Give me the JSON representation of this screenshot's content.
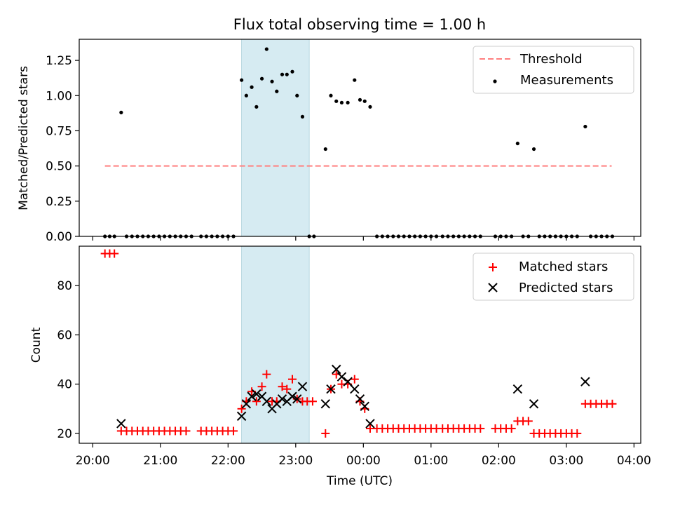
{
  "colors": {
    "threshold": "#ff7f7f",
    "measurements": "#000000",
    "matched": "#ff0000",
    "predicted": "#000000",
    "shade": "#add8e6"
  },
  "chart_data": [
    {
      "type": "scatter",
      "title": "Flux total observing time = 1.00 h",
      "xlabel": "",
      "ylabel": "Matched/Predicted stars",
      "x_units": "hours since 20:00 UTC",
      "xlim": [
        -0.2,
        8.1
      ],
      "ylim": [
        0,
        1.4
      ],
      "yticks": [
        0.0,
        0.25,
        0.5,
        0.75,
        1.0,
        1.25
      ],
      "ytick_labels": [
        "0.00",
        "0.25",
        "0.50",
        "0.75",
        "1.00",
        "1.25"
      ],
      "legend_position": "upper right",
      "legend": [
        "Threshold",
        "Measurements"
      ],
      "shaded_x": [
        2.2,
        3.2
      ],
      "threshold": {
        "name": "Threshold",
        "x": [
          0.18,
          7.67
        ],
        "y": 0.5,
        "style": "dashed"
      },
      "series": [
        {
          "name": "Measurements",
          "marker": "dot",
          "points": [
            [
              0.18,
              0
            ],
            [
              0.25,
              0
            ],
            [
              0.32,
              0
            ],
            [
              0.42,
              0.88
            ],
            [
              0.5,
              0
            ],
            [
              0.58,
              0
            ],
            [
              0.66,
              0
            ],
            [
              0.74,
              0
            ],
            [
              0.82,
              0
            ],
            [
              0.9,
              0
            ],
            [
              0.98,
              0
            ],
            [
              1.06,
              0
            ],
            [
              1.14,
              0
            ],
            [
              1.22,
              0
            ],
            [
              1.3,
              0
            ],
            [
              1.38,
              0
            ],
            [
              1.46,
              0
            ],
            [
              1.6,
              0
            ],
            [
              1.68,
              0
            ],
            [
              1.76,
              0
            ],
            [
              1.84,
              0
            ],
            [
              1.92,
              0
            ],
            [
              2.0,
              0
            ],
            [
              2.08,
              0
            ],
            [
              2.2,
              1.11
            ],
            [
              2.27,
              1.0
            ],
            [
              2.35,
              1.06
            ],
            [
              2.42,
              0.92
            ],
            [
              2.5,
              1.12
            ],
            [
              2.57,
              1.33
            ],
            [
              2.65,
              1.1
            ],
            [
              2.72,
              1.03
            ],
            [
              2.8,
              1.15
            ],
            [
              2.87,
              1.15
            ],
            [
              2.95,
              1.17
            ],
            [
              3.02,
              1.0
            ],
            [
              3.1,
              0.85
            ],
            [
              3.2,
              0
            ],
            [
              3.27,
              0
            ],
            [
              3.44,
              0.62
            ],
            [
              3.52,
              1.0
            ],
            [
              3.6,
              0.96
            ],
            [
              3.68,
              0.95
            ],
            [
              3.77,
              0.95
            ],
            [
              3.87,
              1.11
            ],
            [
              3.95,
              0.97
            ],
            [
              4.02,
              0.96
            ],
            [
              4.1,
              0.92
            ],
            [
              4.2,
              0
            ],
            [
              4.28,
              0
            ],
            [
              4.36,
              0
            ],
            [
              4.44,
              0
            ],
            [
              4.52,
              0
            ],
            [
              4.6,
              0
            ],
            [
              4.68,
              0
            ],
            [
              4.76,
              0
            ],
            [
              4.84,
              0
            ],
            [
              4.92,
              0
            ],
            [
              5.0,
              0
            ],
            [
              5.08,
              0
            ],
            [
              5.17,
              0
            ],
            [
              5.25,
              0
            ],
            [
              5.33,
              0
            ],
            [
              5.41,
              0
            ],
            [
              5.49,
              0
            ],
            [
              5.57,
              0
            ],
            [
              5.65,
              0
            ],
            [
              5.73,
              0
            ],
            [
              5.95,
              0
            ],
            [
              6.03,
              0
            ],
            [
              6.11,
              0
            ],
            [
              6.19,
              0
            ],
            [
              6.28,
              0.66
            ],
            [
              6.36,
              0
            ],
            [
              6.44,
              0
            ],
            [
              6.52,
              0.62
            ],
            [
              6.6,
              0
            ],
            [
              6.68,
              0
            ],
            [
              6.76,
              0
            ],
            [
              6.84,
              0
            ],
            [
              6.92,
              0
            ],
            [
              7.0,
              0
            ],
            [
              7.08,
              0
            ],
            [
              7.16,
              0
            ],
            [
              7.28,
              0.78
            ],
            [
              7.36,
              0
            ],
            [
              7.44,
              0
            ],
            [
              7.52,
              0
            ],
            [
              7.6,
              0
            ],
            [
              7.68,
              0
            ]
          ]
        }
      ]
    },
    {
      "type": "scatter",
      "title": "",
      "xlabel": "Time (UTC)",
      "ylabel": "Count",
      "x_units": "hours since 20:00 UTC",
      "xlim": [
        -0.2,
        8.1
      ],
      "ylim": [
        16,
        96
      ],
      "yticks": [
        20,
        40,
        60,
        80
      ],
      "ytick_labels": [
        "20",
        "40",
        "60",
        "80"
      ],
      "xticks": [
        0,
        1,
        2,
        3,
        4,
        5,
        6,
        7,
        8
      ],
      "xtick_labels": [
        "20:00",
        "21:00",
        "22:00",
        "23:00",
        "00:00",
        "01:00",
        "02:00",
        "03:00",
        "04:00"
      ],
      "legend_position": "upper right",
      "legend": [
        "Matched stars",
        "Predicted stars"
      ],
      "shaded_x": [
        2.2,
        3.2
      ],
      "series": [
        {
          "name": "Matched stars",
          "marker": "plus",
          "points": [
            [
              0.18,
              93
            ],
            [
              0.25,
              93
            ],
            [
              0.32,
              93
            ],
            [
              0.42,
              21
            ],
            [
              0.5,
              21
            ],
            [
              0.58,
              21
            ],
            [
              0.66,
              21
            ],
            [
              0.74,
              21
            ],
            [
              0.82,
              21
            ],
            [
              0.9,
              21
            ],
            [
              0.98,
              21
            ],
            [
              1.06,
              21
            ],
            [
              1.14,
              21
            ],
            [
              1.22,
              21
            ],
            [
              1.3,
              21
            ],
            [
              1.38,
              21
            ],
            [
              1.6,
              21
            ],
            [
              1.68,
              21
            ],
            [
              1.76,
              21
            ],
            [
              1.84,
              21
            ],
            [
              1.92,
              21
            ],
            [
              2.0,
              21
            ],
            [
              2.08,
              21
            ],
            [
              2.2,
              30
            ],
            [
              2.27,
              33
            ],
            [
              2.35,
              37
            ],
            [
              2.42,
              33
            ],
            [
              2.5,
              39
            ],
            [
              2.57,
              44
            ],
            [
              2.65,
              33
            ],
            [
              2.72,
              33
            ],
            [
              2.8,
              39
            ],
            [
              2.87,
              38
            ],
            [
              2.95,
              42
            ],
            [
              3.02,
              34
            ],
            [
              3.1,
              33
            ],
            [
              3.17,
              33
            ],
            [
              3.25,
              33
            ],
            [
              3.44,
              20
            ],
            [
              3.52,
              38
            ],
            [
              3.6,
              44
            ],
            [
              3.68,
              40
            ],
            [
              3.77,
              40
            ],
            [
              3.87,
              42
            ],
            [
              3.95,
              33
            ],
            [
              4.02,
              30
            ],
            [
              4.1,
              22
            ],
            [
              4.2,
              22
            ],
            [
              4.28,
              22
            ],
            [
              4.36,
              22
            ],
            [
              4.44,
              22
            ],
            [
              4.52,
              22
            ],
            [
              4.6,
              22
            ],
            [
              4.68,
              22
            ],
            [
              4.76,
              22
            ],
            [
              4.84,
              22
            ],
            [
              4.92,
              22
            ],
            [
              5.0,
              22
            ],
            [
              5.08,
              22
            ],
            [
              5.17,
              22
            ],
            [
              5.25,
              22
            ],
            [
              5.33,
              22
            ],
            [
              5.41,
              22
            ],
            [
              5.49,
              22
            ],
            [
              5.57,
              22
            ],
            [
              5.65,
              22
            ],
            [
              5.73,
              22
            ],
            [
              5.95,
              22
            ],
            [
              6.03,
              22
            ],
            [
              6.11,
              22
            ],
            [
              6.19,
              22
            ],
            [
              6.28,
              25
            ],
            [
              6.36,
              25
            ],
            [
              6.44,
              25
            ],
            [
              6.52,
              20
            ],
            [
              6.6,
              20
            ],
            [
              6.68,
              20
            ],
            [
              6.76,
              20
            ],
            [
              6.84,
              20
            ],
            [
              6.92,
              20
            ],
            [
              7.0,
              20
            ],
            [
              7.08,
              20
            ],
            [
              7.16,
              20
            ],
            [
              7.28,
              32
            ],
            [
              7.36,
              32
            ],
            [
              7.44,
              32
            ],
            [
              7.52,
              32
            ],
            [
              7.6,
              32
            ],
            [
              7.68,
              32
            ]
          ]
        },
        {
          "name": "Predicted stars",
          "marker": "x",
          "points": [
            [
              0.42,
              24
            ],
            [
              2.2,
              27
            ],
            [
              2.27,
              32
            ],
            [
              2.35,
              35
            ],
            [
              2.42,
              36
            ],
            [
              2.5,
              35
            ],
            [
              2.57,
              33
            ],
            [
              2.65,
              30
            ],
            [
              2.72,
              32
            ],
            [
              2.8,
              34
            ],
            [
              2.87,
              33
            ],
            [
              2.95,
              35
            ],
            [
              3.02,
              34
            ],
            [
              3.1,
              39
            ],
            [
              3.44,
              32
            ],
            [
              3.52,
              38
            ],
            [
              3.6,
              46
            ],
            [
              3.68,
              43
            ],
            [
              3.77,
              41
            ],
            [
              3.87,
              38
            ],
            [
              3.95,
              34
            ],
            [
              4.02,
              31
            ],
            [
              4.1,
              24
            ],
            [
              6.28,
              38
            ],
            [
              6.52,
              32
            ],
            [
              7.28,
              41
            ]
          ]
        }
      ]
    }
  ]
}
